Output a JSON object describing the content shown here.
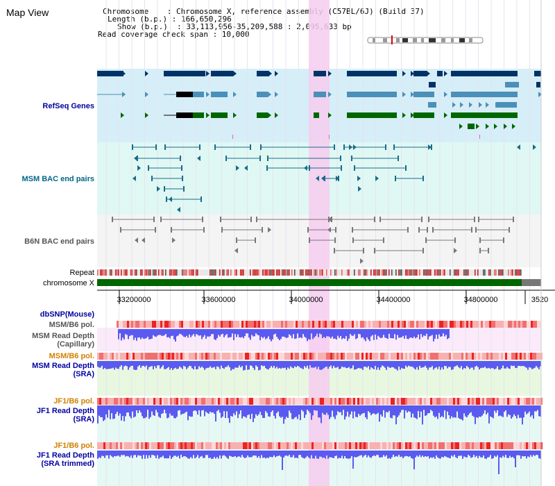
{
  "title": "Map View",
  "info": {
    "line1": "Chromosome    : Chromosome X, reference assembly (C57BL/6J) (Build 37)",
    "line2": "Length (b.p.) : 166,650,296",
    "line3": "Show (b.p.)  : 33,113,956-35,209,588 : 2,095,633 bp",
    "line4": "Read coverage check span : 10,000"
  },
  "tracks": {
    "refseq": "RefSeq Genes",
    "msm_bac": "MSM BAC end pairs",
    "b6n_bac": "B6N BAC end pairs",
    "repeat": "Repeat",
    "chromosome": "chromosome X",
    "dbsnp": "dbSNP(Mouse)",
    "msm_pol_1": "MSM/B6 pol.",
    "msm_depth_cap_1": "MSM Read Depth",
    "msm_depth_cap_2": "(Capillary)",
    "msm_pol_2": "MSM/B6 pol.",
    "msm_depth_sra_1": "MSM Read Depth",
    "msm_depth_sra_2": "(SRA)",
    "jf1_pol_1": "JF1/B6 pol.",
    "jf1_depth_1": "JF1 Read Depth",
    "jf1_depth_2": "(SRA)",
    "jf1_pol_2": "JF1/B6 pol.",
    "jf1_trim_1": "JF1 Read Depth",
    "jf1_trim_2": "(SRA trimmed)"
  },
  "axis": {
    "ticks": [
      "33200000",
      "33600000",
      "34000000",
      "34400000",
      "34800000",
      "3520"
    ]
  },
  "colors": {
    "refseq_bg": "#d6eef8",
    "msm_bg": "#e0f8f4",
    "b6n_bg": "#f2f2f2",
    "highlight": "#f6cdee",
    "label_blue": "#0000a0",
    "label_orange": "#d08000",
    "gene_dark": "#003366",
    "gene_mid": "#4a90b8",
    "gene_green": "#006600",
    "depth_blue": "#5555ee",
    "chrom_green": "#006600"
  }
}
